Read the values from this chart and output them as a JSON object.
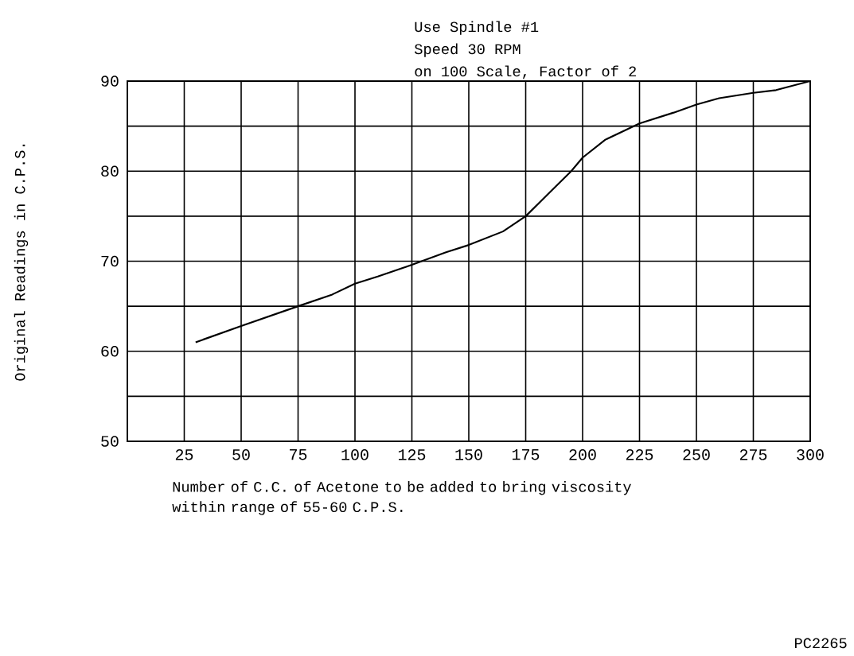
{
  "chart_data": {
    "type": "line",
    "ylabel": "Original Readings in C.P.S.",
    "xlabel": "Number of C.C. of Acetone to be added to bring viscosity within range of 55-60 C.P.S.",
    "annotations": [
      "Use Spindle #1",
      "Speed  30 RPM",
      "on 100 Scale, Factor of 2",
      "PC2265"
    ],
    "x": [
      30,
      50,
      75,
      90,
      100,
      110,
      125,
      140,
      150,
      165,
      175,
      185,
      195,
      200,
      210,
      225,
      240,
      250,
      260,
      275,
      285,
      300
    ],
    "values": [
      61,
      62.8,
      65,
      66.3,
      67.5,
      68.3,
      69.6,
      71,
      71.8,
      73.3,
      75,
      77.5,
      80,
      81.5,
      83.5,
      85.3,
      86.5,
      87.4,
      88.1,
      88.7,
      89,
      90
    ],
    "color": "#000000",
    "xlim": [
      0,
      300
    ],
    "xticks": [
      25,
      50,
      75,
      100,
      125,
      150,
      175,
      200,
      225,
      250,
      275,
      300
    ],
    "ylim": [
      50,
      90
    ],
    "yticks": [
      50,
      {
        "value": 55,
        "label": null
      },
      60,
      {
        "value": 65,
        "label": null
      },
      70,
      {
        "value": 75,
        "label": null
      },
      80,
      {
        "value": 85,
        "label": null
      },
      90
    ],
    "grid": true,
    "marker": "none",
    "line_style": "solid"
  }
}
